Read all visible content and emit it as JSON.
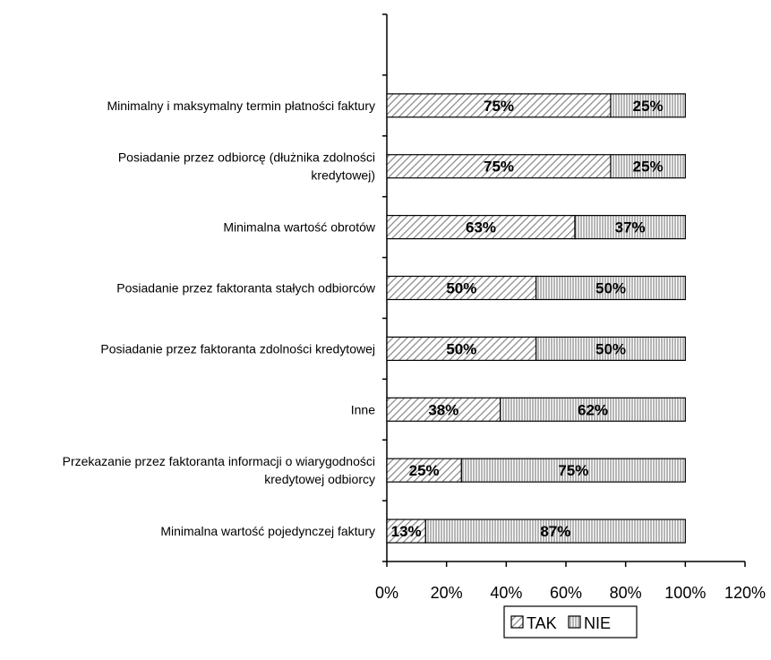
{
  "chart_data": {
    "type": "bar",
    "orientation": "horizontal",
    "stacked": true,
    "categories": [
      "",
      "Minimalny i maksymalny termin płatności faktury",
      "Posiadanie przez odbiorcę (dłużnika zdolności kredytowej)",
      "Minimalna wartość obrotów",
      "Posiadanie przez faktoranta stałych odbiorców",
      "Posiadanie przez faktoranta zdolności kredytowej",
      "Inne",
      "Przekazanie przez faktoranta informacji o wiarygodności kredytowej odbiorcy",
      "Minimalna wartość pojedynczej faktury"
    ],
    "category_lines": [
      [],
      [
        "Minimalny i maksymalny termin płatności faktury"
      ],
      [
        "Posiadanie przez odbiorcę (dłużnika zdolności",
        "kredytowej)"
      ],
      [
        "Minimalna wartość obrotów"
      ],
      [
        "Posiadanie przez faktoranta stałych odbiorców"
      ],
      [
        "Posiadanie przez faktoranta zdolności kredytowej"
      ],
      [
        "Inne"
      ],
      [
        "Przekazanie przez faktoranta informacji o wiarygodności",
        "kredytowej odbiorcy"
      ],
      [
        "Minimalna wartość pojedynczej faktury"
      ]
    ],
    "series": [
      {
        "name": "TAK",
        "values": [
          null,
          75,
          75,
          63,
          50,
          50,
          38,
          25,
          13
        ],
        "labels": [
          "",
          "75%",
          "75%",
          "63%",
          "50%",
          "50%",
          "38%",
          "25%",
          "13%"
        ],
        "pattern": "diagonal"
      },
      {
        "name": "NIE",
        "values": [
          null,
          25,
          25,
          37,
          50,
          50,
          62,
          75,
          87
        ],
        "labels": [
          "",
          "25%",
          "25%",
          "37%",
          "50%",
          "50%",
          "62%",
          "75%",
          "87%"
        ],
        "pattern": "vertical"
      }
    ],
    "x_ticks": [
      0,
      20,
      40,
      60,
      80,
      100,
      120
    ],
    "x_tick_labels": [
      "0%",
      "20%",
      "40%",
      "60%",
      "80%",
      "100%",
      "120%"
    ],
    "xlim": [
      0,
      120
    ],
    "grid": false,
    "legend_position": "bottom",
    "colors": {
      "stroke": "#000000",
      "hatch": "#8c8c8c",
      "background": "#ffffff"
    }
  }
}
